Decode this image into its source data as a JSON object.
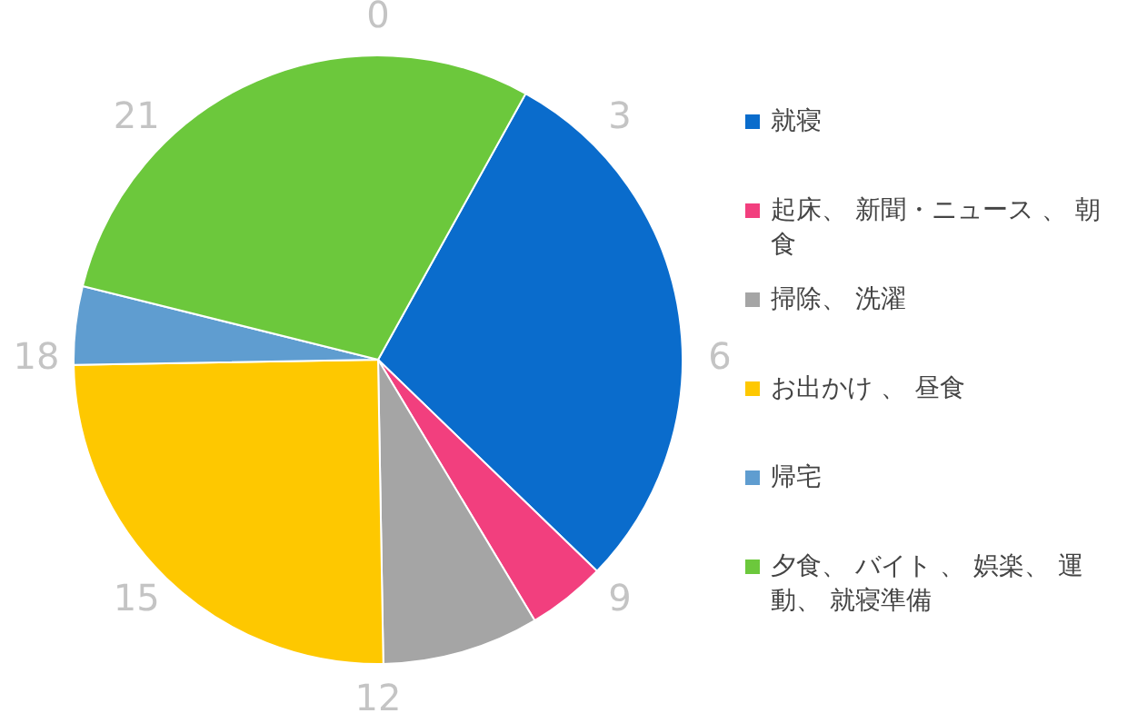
{
  "chart_data": {
    "type": "pie",
    "categories": [
      "就寝",
      "起床、 新聞・ニュース 、 朝食",
      "掃除、 洗濯",
      "お出かけ 、 昼食",
      "帰宅",
      "夕食、 バイト 、 娯楽、 運動、 就寝準備"
    ],
    "values": [
      29.17,
      4.17,
      8.33,
      25,
      4.16,
      29.17
    ],
    "colors": [
      "#0a6ccc",
      "#f23f7e",
      "#a5a5a5",
      "#fec800",
      "#5f9dd0",
      "#6cc83c"
    ],
    "annotations": [
      "0",
      "3",
      "6",
      "9",
      "12",
      "15",
      "18",
      "21"
    ],
    "legend": "right"
  }
}
